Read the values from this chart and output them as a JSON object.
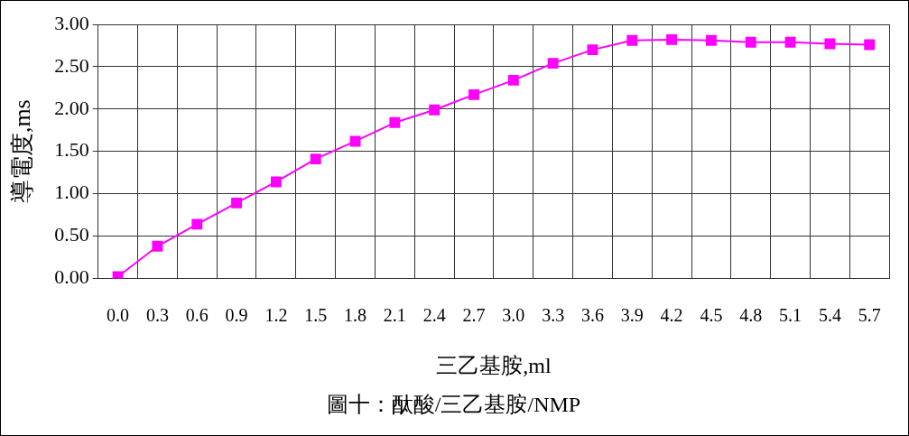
{
  "chart_data": {
    "type": "line",
    "title": "圖十：酞酸/三乙基胺/NMP",
    "xlabel": "三乙基胺,ml",
    "ylabel": "導電度,ms",
    "categories": [
      "0.0",
      "0.3",
      "0.6",
      "0.9",
      "1.2",
      "1.5",
      "1.8",
      "2.1",
      "2.4",
      "2.7",
      "3.0",
      "3.3",
      "3.6",
      "3.9",
      "4.2",
      "4.5",
      "4.8",
      "5.1",
      "5.4",
      "5.7"
    ],
    "series": [
      {
        "color": "#ff00ff",
        "values": [
          0.02,
          0.38,
          0.64,
          0.89,
          1.14,
          1.41,
          1.62,
          1.84,
          1.99,
          2.17,
          2.34,
          2.54,
          2.7,
          2.81,
          2.82,
          2.81,
          2.79,
          2.79,
          2.77,
          2.76
        ]
      }
    ],
    "ylim": [
      0,
      3
    ],
    "yticks": [
      {
        "value": 0,
        "label": "0.00"
      },
      {
        "value": 0.5,
        "label": "0.50"
      },
      {
        "value": 1,
        "label": "1.00"
      },
      {
        "value": 1.5,
        "label": "1.50"
      },
      {
        "value": 2,
        "label": "2.00"
      },
      {
        "value": 2.5,
        "label": "2.50"
      },
      {
        "value": 3,
        "label": "3.00"
      }
    ],
    "grid": true,
    "legend": false,
    "marker": "square",
    "line_style": "solid"
  }
}
